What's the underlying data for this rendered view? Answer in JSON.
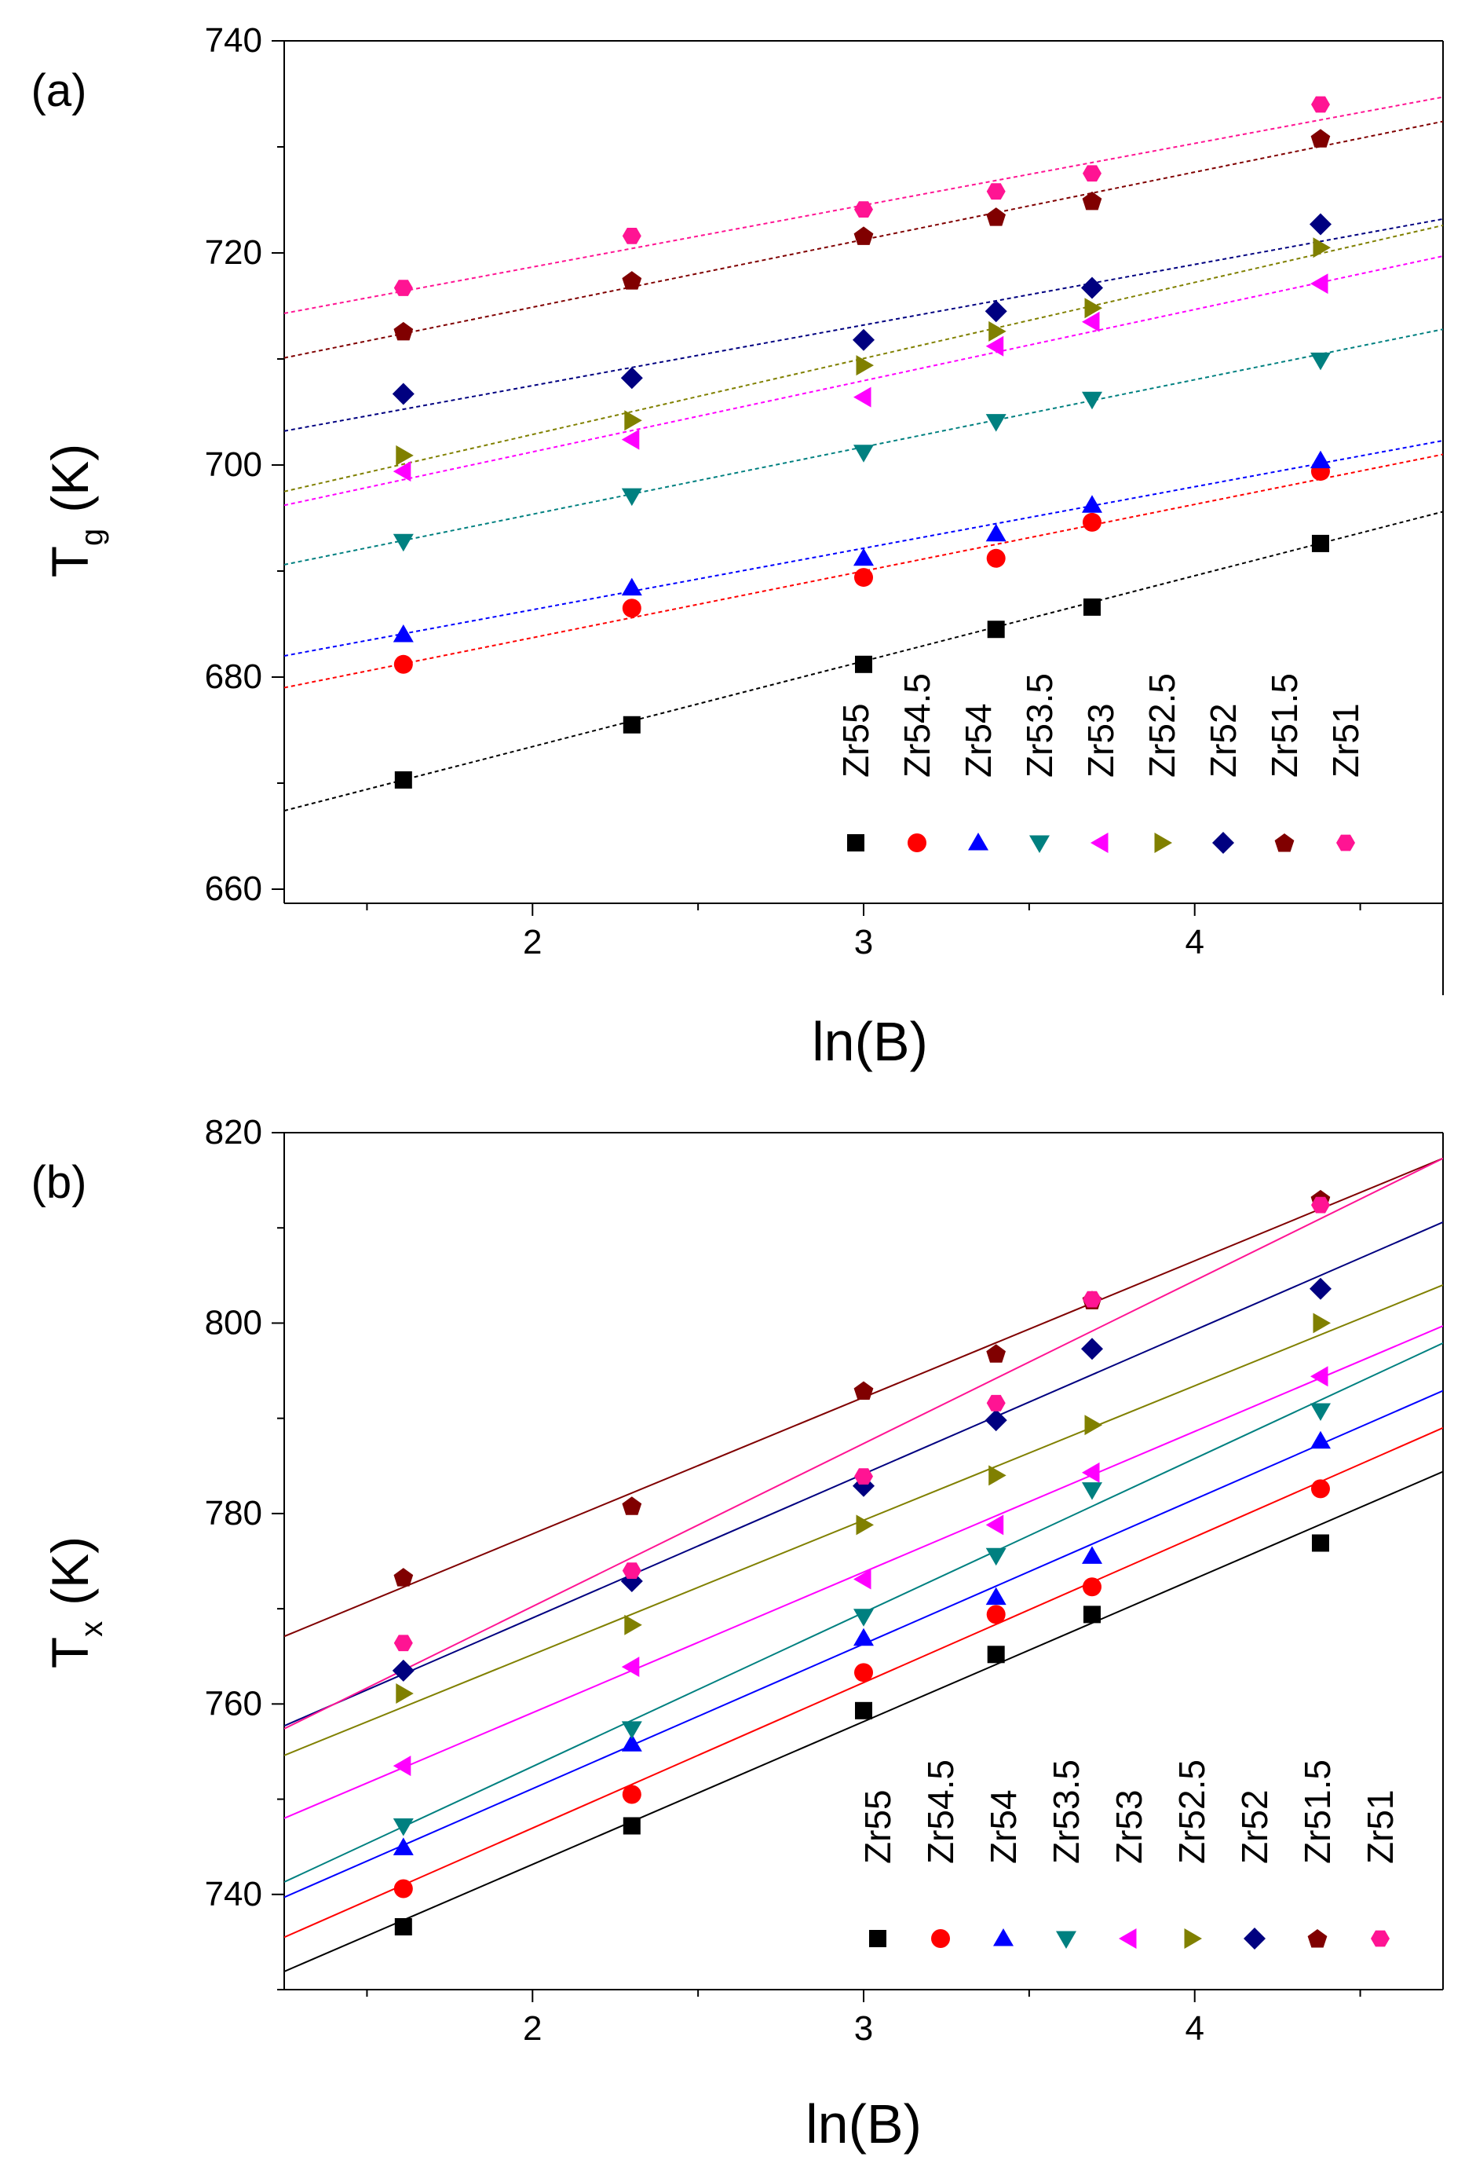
{
  "chart_data": [
    {
      "type": "scatter",
      "panel_label": "(a)",
      "ylabel_main": "T",
      "ylabel_sub": "g",
      "ylabel_unit": "(K)",
      "xlabel": "ln(B)",
      "xlim": [
        1.25,
        4.75
      ],
      "ylim": [
        650,
        740
      ],
      "xticks": [
        2,
        3,
        4
      ],
      "xtick_labels": [
        "2",
        "3",
        "4"
      ],
      "yticks": [
        660,
        680,
        700,
        720,
        740
      ],
      "ytick_labels": [
        "660",
        "680",
        "700",
        "720",
        "740"
      ],
      "grid": false,
      "legend_position": "bottom-right",
      "x": [
        1.61,
        2.3,
        3.0,
        3.4,
        3.69,
        4.38
      ],
      "series": [
        {
          "name": "Zr55",
          "marker": "square",
          "color": "#000000",
          "values": [
            670.3,
            675.5,
            681.2,
            684.5,
            686.6,
            692.6
          ],
          "fit": [
            [
              1.25,
              667.4
            ],
            [
              4.75,
              695.6
            ]
          ]
        },
        {
          "name": "Zr54.5",
          "marker": "circle",
          "color": "#ff0000",
          "values": [
            681.2,
            686.5,
            689.4,
            691.2,
            694.6,
            699.4
          ],
          "fit": [
            [
              1.25,
              679.0
            ],
            [
              4.75,
              701.0
            ]
          ]
        },
        {
          "name": "Zr54",
          "marker": "triangle-up",
          "color": "#0000ff",
          "values": [
            684.0,
            688.4,
            691.2,
            693.5,
            696.2,
            700.4
          ],
          "fit": [
            [
              1.25,
              682.0
            ],
            [
              4.75,
              702.3
            ]
          ]
        },
        {
          "name": "Zr53.5",
          "marker": "triangle-down",
          "color": "#008080",
          "values": [
            692.8,
            697.1,
            701.2,
            704.1,
            706.2,
            709.9
          ],
          "fit": [
            [
              1.25,
              690.6
            ],
            [
              4.75,
              712.8
            ]
          ]
        },
        {
          "name": "Zr53",
          "marker": "triangle-left",
          "color": "#ff00ff",
          "values": [
            699.4,
            702.4,
            706.4,
            711.2,
            713.5,
            717.1
          ],
          "fit": [
            [
              1.25,
              696.2
            ],
            [
              4.75,
              719.7
            ]
          ]
        },
        {
          "name": "Zr52.5",
          "marker": "triangle-right",
          "color": "#808000",
          "values": [
            700.9,
            704.2,
            709.4,
            712.6,
            714.8,
            720.5
          ],
          "fit": [
            [
              1.25,
              697.5
            ],
            [
              4.75,
              722.6
            ]
          ]
        },
        {
          "name": "Zr52",
          "marker": "diamond",
          "color": "#000080",
          "values": [
            706.7,
            708.2,
            711.8,
            714.5,
            716.7,
            722.7
          ],
          "fit": [
            [
              1.25,
              703.2
            ],
            [
              4.75,
              723.2
            ]
          ]
        },
        {
          "name": "Zr51.5",
          "marker": "pentagon",
          "color": "#800000",
          "values": [
            712.6,
            717.4,
            721.6,
            723.4,
            724.9,
            730.8
          ],
          "fit": [
            [
              1.25,
              710.1
            ],
            [
              4.75,
              732.4
            ]
          ]
        },
        {
          "name": "Zr51",
          "marker": "hexagon",
          "color": "#ff1493",
          "values": [
            716.7,
            721.6,
            724.1,
            725.8,
            727.5,
            734.0
          ],
          "fit": [
            [
              1.25,
              714.3
            ],
            [
              4.75,
              734.7
            ]
          ]
        }
      ]
    },
    {
      "type": "scatter",
      "panel_label": "(b)",
      "ylabel_main": "T",
      "ylabel_sub": "x",
      "ylabel_unit": "(K)",
      "xlabel": "ln(B)",
      "xlim": [
        1.25,
        4.75
      ],
      "ylim": [
        730,
        820
      ],
      "xticks": [
        2,
        3,
        4
      ],
      "xtick_labels": [
        "2",
        "3",
        "4"
      ],
      "yticks": [
        740,
        760,
        780,
        800,
        820
      ],
      "ytick_labels": [
        "740",
        "760",
        "780",
        "800",
        "820"
      ],
      "grid": false,
      "legend_position": "bottom-right",
      "x": [
        1.61,
        2.3,
        3.0,
        3.4,
        3.69,
        4.38
      ],
      "series": [
        {
          "name": "Zr55",
          "marker": "square",
          "color": "#000000",
          "values": [
            736.6,
            747.2,
            759.3,
            765.2,
            769.4,
            776.9
          ],
          "fit": [
            [
              1.25,
              731.9
            ],
            [
              4.75,
              784.4
            ]
          ]
        },
        {
          "name": "Zr54.5",
          "marker": "circle",
          "color": "#ff0000",
          "values": [
            740.6,
            750.5,
            763.3,
            769.4,
            772.3,
            782.6
          ],
          "fit": [
            [
              1.25,
              735.5
            ],
            [
              4.75,
              789.0
            ]
          ]
        },
        {
          "name": "Zr54",
          "marker": "triangle-up",
          "color": "#0000ff",
          "values": [
            744.9,
            755.8,
            766.9,
            771.2,
            775.5,
            787.6
          ],
          "fit": [
            [
              1.25,
              739.7
            ],
            [
              4.75,
              792.9
            ]
          ]
        },
        {
          "name": "Zr53.5",
          "marker": "triangle-down",
          "color": "#008080",
          "values": [
            747.2,
            757.4,
            769.2,
            775.6,
            782.5,
            790.8
          ],
          "fit": [
            [
              1.25,
              741.3
            ],
            [
              4.75,
              797.9
            ]
          ]
        },
        {
          "name": "Zr53",
          "marker": "triangle-left",
          "color": "#ff00ff",
          "values": [
            753.5,
            763.9,
            773.1,
            778.8,
            784.3,
            794.4
          ],
          "fit": [
            [
              1.25,
              748.0
            ],
            [
              4.75,
              799.7
            ]
          ]
        },
        {
          "name": "Zr52.5",
          "marker": "triangle-right",
          "color": "#808000",
          "values": [
            761.1,
            768.3,
            778.8,
            784.0,
            789.3,
            800.0
          ],
          "fit": [
            [
              1.25,
              754.6
            ],
            [
              4.75,
              804.0
            ]
          ]
        },
        {
          "name": "Zr52",
          "marker": "diamond",
          "color": "#000080",
          "values": [
            763.5,
            772.9,
            782.9,
            789.8,
            797.3,
            803.6
          ],
          "fit": [
            [
              1.25,
              757.7
            ],
            [
              4.75,
              810.6
            ]
          ]
        },
        {
          "name": "Zr51.5",
          "marker": "pentagon",
          "color": "#800000",
          "values": [
            773.3,
            780.8,
            792.9,
            796.8,
            802.4,
            813.0
          ],
          "fit": [
            [
              1.25,
              767.1
            ],
            [
              4.75,
              817.3
            ]
          ]
        },
        {
          "name": "Zr51",
          "marker": "hexagon",
          "color": "#ff1493",
          "values": [
            766.4,
            774.0,
            783.9,
            791.6,
            802.5,
            812.4
          ],
          "fit": [
            [
              1.25,
              757.4
            ],
            [
              4.75,
              817.3
            ]
          ]
        }
      ]
    }
  ]
}
